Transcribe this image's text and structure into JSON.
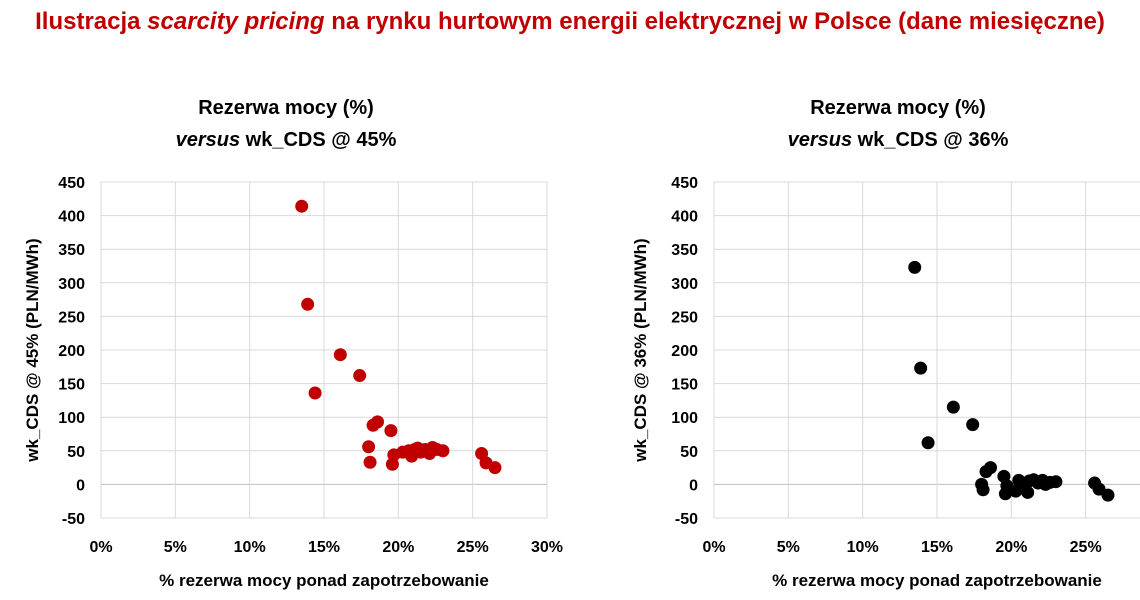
{
  "page_title": {
    "before": "Ilustracja ",
    "emphasis": "scarcity pricing",
    "after": "  na rynku hurtowym energii elektrycznej w Polsce (dane miesięczne)"
  },
  "colors": {
    "title": "#c00000",
    "series_left": "#c00000",
    "series_right": "#000000",
    "grid": "#d9d9d9"
  },
  "chart_data": [
    {
      "type": "scatter",
      "title_line1": "Rezerwa mocy (%)",
      "title_line2_italic": "versus",
      "title_line2_rest": " wk_CDS @ 45%",
      "xlabel": "% rezerwa mocy ponad zapotrzebowanie",
      "ylabel": "wk_CDS @ 45% (PLN/MWh)",
      "xlim": [
        0,
        0.3
      ],
      "ylim": [
        -50,
        450
      ],
      "xticks": [
        0,
        0.05,
        0.1,
        0.15,
        0.2,
        0.25,
        0.3
      ],
      "xtick_labels": [
        "0%",
        "5%",
        "10%",
        "15%",
        "20%",
        "25%",
        "30%"
      ],
      "yticks": [
        -50,
        0,
        50,
        100,
        150,
        200,
        250,
        300,
        350,
        400,
        450
      ],
      "ytick_labels": [
        "-50",
        "0",
        "50",
        "100",
        "150",
        "200",
        "250",
        "300",
        "350",
        "400",
        "450"
      ],
      "grid": true,
      "series_color": "#c00000",
      "points": [
        [
          0.135,
          414
        ],
        [
          0.139,
          268
        ],
        [
          0.144,
          136
        ],
        [
          0.161,
          193
        ],
        [
          0.174,
          162
        ],
        [
          0.18,
          56
        ],
        [
          0.181,
          33
        ],
        [
          0.183,
          88
        ],
        [
          0.186,
          93
        ],
        [
          0.195,
          80
        ],
        [
          0.196,
          30
        ],
        [
          0.197,
          44
        ],
        [
          0.203,
          48
        ],
        [
          0.207,
          50
        ],
        [
          0.209,
          42
        ],
        [
          0.211,
          52
        ],
        [
          0.213,
          54
        ],
        [
          0.215,
          48
        ],
        [
          0.218,
          52
        ],
        [
          0.221,
          46
        ],
        [
          0.223,
          55
        ],
        [
          0.226,
          52
        ],
        [
          0.23,
          50
        ],
        [
          0.256,
          46
        ],
        [
          0.259,
          32
        ],
        [
          0.265,
          25
        ]
      ]
    },
    {
      "type": "scatter",
      "title_line1": "Rezerwa mocy (%)",
      "title_line2_italic": "versus",
      "title_line2_rest": " wk_CDS @ 36%",
      "xlabel": "% rezerwa mocy ponad zapotrzebowanie",
      "ylabel": "wk_CDS @ 36% (PLN/MWh)",
      "xlim": [
        0,
        0.3
      ],
      "ylim": [
        -50,
        450
      ],
      "xticks": [
        0,
        0.05,
        0.1,
        0.15,
        0.2,
        0.25
      ],
      "xtick_labels": [
        "0%",
        "5%",
        "10%",
        "15%",
        "20%",
        "25%"
      ],
      "yticks": [
        -50,
        0,
        50,
        100,
        150,
        200,
        250,
        300,
        350,
        400,
        450
      ],
      "ytick_labels": [
        "-50",
        "0",
        "50",
        "100",
        "150",
        "200",
        "250",
        "300",
        "350",
        "400",
        "450"
      ],
      "grid": true,
      "series_color": "#000000",
      "points": [
        [
          0.135,
          323
        ],
        [
          0.139,
          173
        ],
        [
          0.144,
          62
        ],
        [
          0.161,
          115
        ],
        [
          0.174,
          89
        ],
        [
          0.18,
          0
        ],
        [
          0.181,
          -8
        ],
        [
          0.183,
          19
        ],
        [
          0.186,
          25
        ],
        [
          0.195,
          12
        ],
        [
          0.196,
          -14
        ],
        [
          0.197,
          -2
        ],
        [
          0.203,
          -10
        ],
        [
          0.205,
          6
        ],
        [
          0.209,
          -5
        ],
        [
          0.211,
          -12
        ],
        [
          0.212,
          5
        ],
        [
          0.215,
          7
        ],
        [
          0.218,
          2
        ],
        [
          0.221,
          6
        ],
        [
          0.223,
          0
        ],
        [
          0.226,
          3
        ],
        [
          0.23,
          4
        ],
        [
          0.256,
          2
        ],
        [
          0.259,
          -7
        ],
        [
          0.265,
          -16
        ]
      ]
    }
  ]
}
